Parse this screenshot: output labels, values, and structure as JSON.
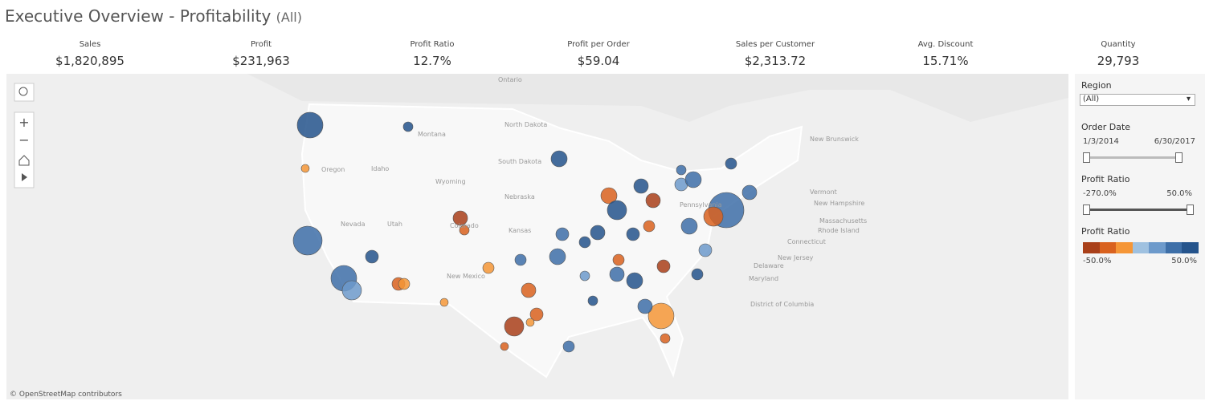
{
  "header": {
    "title": "Executive Overview - Profitability",
    "filter_note": "(All)"
  },
  "kpis": [
    {
      "label": "Sales",
      "value": "$1,820,895"
    },
    {
      "label": "Profit",
      "value": "$231,963"
    },
    {
      "label": "Profit Ratio",
      "value": "12.7%"
    },
    {
      "label": "Profit per Order",
      "value": "$59.04"
    },
    {
      "label": "Sales per Customer",
      "value": "$2,313.72"
    },
    {
      "label": "Avg. Discount",
      "value": "15.71%"
    },
    {
      "label": "Quantity",
      "value": "29,793"
    }
  ],
  "map": {
    "labels": [
      "Ontario",
      "North Dakota",
      "South Dakota",
      "Montana",
      "Wyoming",
      "Idaho",
      "Oregon",
      "Nevada",
      "Utah",
      "Colorado",
      "Nebraska",
      "Kansas",
      "New Mexico",
      "Pennsylvania",
      "New Brunswick",
      "Vermont",
      "New Hampshire",
      "Massachusetts",
      "Rhode Island",
      "Connecticut",
      "New Jersey",
      "Delaware",
      "Maryland",
      "District of Columbia"
    ],
    "attribution": "© OpenStreetMap contributors"
  },
  "filters": {
    "region": {
      "title": "Region",
      "selected": "(All)"
    },
    "order_date": {
      "title": "Order Date",
      "start": "1/3/2014",
      "end": "6/30/2017"
    },
    "profit_ratio": {
      "title": "Profit Ratio",
      "min": "-270.0%",
      "max": "50.0%"
    }
  },
  "legend": {
    "title": "Profit Ratio",
    "min": "-50.0%",
    "max": "50.0%",
    "colors": [
      "#a9401a",
      "#d9621f",
      "#f59637",
      "#9fc1e0",
      "#6d9acb",
      "#3e6fa8",
      "#25548c"
    ]
  }
}
